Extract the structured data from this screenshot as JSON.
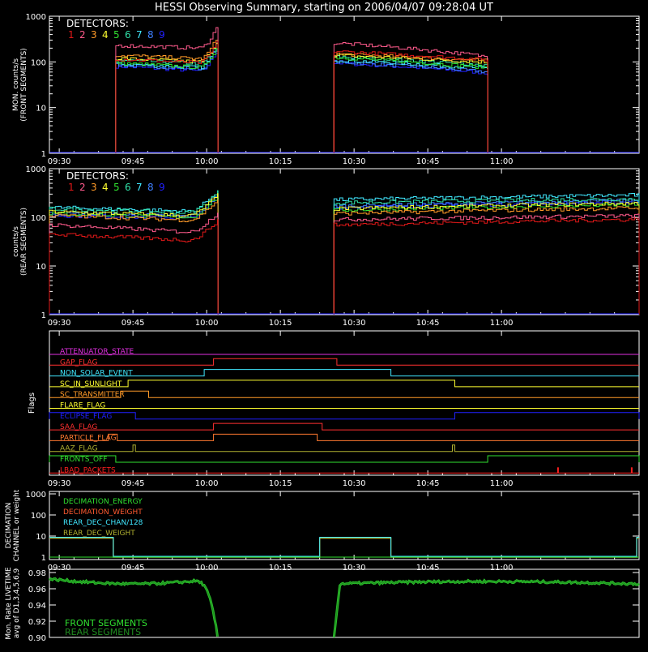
{
  "title": "HESSI Observing Summary, starting on 2006/04/07 09:28:04 UT",
  "colors": {
    "det": [
      "#e01818",
      "#ff5a8c",
      "#ff9a28",
      "#ffff30",
      "#30e030",
      "#30e0a8",
      "#40e8ff",
      "#4080ff",
      "#2020ff"
    ],
    "axis": "#ffffff"
  },
  "chart_data": [
    {
      "type": "line",
      "id": "front",
      "ylabel": [
        "MON. counts/s",
        "(FRONT SEGMENTS)"
      ],
      "yscale": "log",
      "ylim": [
        1,
        1000
      ],
      "yticks": [
        "1",
        "10",
        "100",
        "1000"
      ],
      "xlim_min": [
        0,
        120
      ],
      "xticks_min": [
        2,
        17,
        32,
        47,
        62,
        77,
        92
      ],
      "xtick_labels": [
        "09:30",
        "09:45",
        "10:00",
        "10:15",
        "10:30",
        "10:45",
        "11:00"
      ],
      "legend_title": "DETECTORS:",
      "legend_labels": [
        "1",
        "2",
        "3",
        "4",
        "5",
        "6",
        "7",
        "8",
        "9"
      ],
      "series_labels": [
        "1",
        "2",
        "3",
        "4",
        "5",
        "6",
        "7",
        "8",
        "9"
      ],
      "intervals": [
        {
          "start": 13.5,
          "end": 34.3,
          "base": [
            115,
            230,
            140,
            120,
            95,
            110,
            90,
            85,
            80
          ],
          "end_factor": [
            0.8,
            0.85,
            0.8,
            0.8,
            0.75,
            0.8,
            0.8,
            0.8,
            0.75
          ],
          "spike": 3.2
        },
        {
          "start": 57.9,
          "end": 89.2,
          "base": [
            170,
            260,
            150,
            140,
            125,
            130,
            110,
            100,
            95
          ],
          "end_factor": [
            0.65,
            0.5,
            0.7,
            0.7,
            0.6,
            0.65,
            0.65,
            0.6,
            0.6
          ],
          "spike": 1.0
        }
      ]
    },
    {
      "type": "line",
      "id": "rear",
      "ylabel": [
        "counts/s",
        "(REAR SEGMENTS)"
      ],
      "yscale": "log",
      "ylim": [
        1,
        1000
      ],
      "yticks": [
        "1",
        "10",
        "100",
        "1000"
      ],
      "xlim_min": [
        0,
        120
      ],
      "xticks_min": [
        2,
        17,
        32,
        47,
        62,
        77,
        92
      ],
      "xtick_labels": [
        "09:30",
        "09:45",
        "10:00",
        "10:15",
        "10:30",
        "10:45",
        "11:00"
      ],
      "legend_title": "DETECTORS:",
      "legend_labels": [
        "1",
        "2",
        "3",
        "4",
        "5",
        "6",
        "7",
        "8",
        "9"
      ],
      "series_labels": [
        "1",
        "2",
        "3",
        "4",
        "5",
        "6",
        "7",
        "8",
        "9"
      ],
      "intervals": [
        {
          "start": 0,
          "end": 34.3,
          "base": [
            45,
            70,
            110,
            130,
            120,
            150,
            160,
            120,
            110
          ],
          "end_factor": [
            0.7,
            0.65,
            0.75,
            0.8,
            0.8,
            0.8,
            0.8,
            0.85,
            0.85
          ],
          "spike": 2.8
        },
        {
          "start": 57.9,
          "end": 120,
          "base": [
            70,
            90,
            120,
            150,
            140,
            200,
            230,
            170,
            160
          ],
          "end_factor": [
            1.3,
            1.2,
            1.3,
            1.3,
            1.3,
            1.2,
            1.25,
            1.3,
            1.3
          ],
          "spike": 1.0
        }
      ]
    }
  ],
  "flags": {
    "ylabel": "Flags",
    "xtick_labels": [
      "09:30",
      "09:45",
      "10:00",
      "10:15",
      "10:30",
      "10:45",
      "11:00"
    ],
    "rows": [
      {
        "name": "ATTENUATOR_STATE",
        "color": "#e030e0",
        "steps": []
      },
      {
        "name": "GAP_FLAG",
        "color": "#ff3030",
        "steps": [
          [
            33.4,
            58.5
          ]
        ]
      },
      {
        "name": "NON_SOLAR_EVENT",
        "color": "#40e8ff",
        "steps": [
          [
            31.5,
            69.5
          ]
        ]
      },
      {
        "name": "SC_IN_SUNLIGHT",
        "color": "#ffff30",
        "steps": [
          [
            16.0,
            82.5
          ]
        ]
      },
      {
        "name": "SC_TRANSMITTER",
        "color": "#ff9a28",
        "steps": [
          [
            14.5,
            20.2
          ]
        ]
      },
      {
        "name": "FLARE_FLAG",
        "color": "#ffff30",
        "steps": []
      },
      {
        "name": "ECLIPSE_FLAG",
        "color": "#2020ff",
        "steps": [
          [
            0,
            17.5
          ],
          [
            82.5,
            120
          ]
        ]
      },
      {
        "name": "SAA_FLAG",
        "color": "#ff3030",
        "steps": [
          [
            33.4,
            55.5
          ]
        ]
      },
      {
        "name": "PARTICLE_FLAG",
        "color": "#ff7a30",
        "steps": [
          [
            12.0,
            13.8
          ],
          [
            33.4,
            54.5
          ]
        ]
      },
      {
        "name": "AAZ_FLAG",
        "color": "#b0b030",
        "steps": [
          [
            17.0,
            17.5
          ],
          [
            82.0,
            82.5
          ]
        ]
      },
      {
        "name": "FRONTS_OFF",
        "color": "#30e030",
        "steps": [
          [
            0,
            13.5
          ],
          [
            89.2,
            120
          ]
        ]
      },
      {
        "name": "LBAD_PACKETS",
        "color": "#ff2020",
        "steps": [],
        "ticks": [
          103.5,
          118.5
        ]
      }
    ]
  },
  "decimation": {
    "ylabel": [
      "DECIMATION",
      "CHANNEL or weight"
    ],
    "yticks": [
      "1",
      "10",
      "100",
      "1000"
    ],
    "xtick_labels": [
      "09:30",
      "09:45",
      "10:00",
      "10:15",
      "10:30",
      "10:45",
      "11:00"
    ],
    "legend": [
      {
        "label": "DECIMATION_ENERGY",
        "color": "#30e030"
      },
      {
        "label": "DECIMATION_WEIGHT",
        "color": "#ff5a30"
      },
      {
        "label": "REAR_DEC_CHAN/128",
        "color": "#40e8ff"
      },
      {
        "label": "REAR_DEC_WEIGHT",
        "color": "#b0b030"
      }
    ],
    "segments": [
      [
        0,
        13.0,
        8
      ],
      [
        13.0,
        55.0,
        1
      ],
      [
        55.0,
        69.5,
        8
      ],
      [
        69.5,
        119.5,
        1
      ],
      [
        119.5,
        120,
        8
      ]
    ]
  },
  "livetime": {
    "ylabel": [
      "Mon. Rate LIVETIME",
      "avg of D1,3,4,5,6,9"
    ],
    "ylim": [
      0.9,
      0.98
    ],
    "yticks": [
      "0.90",
      "0.92",
      "0.94",
      "0.96",
      "0.98"
    ],
    "legend": [
      {
        "label": "FRONT SEGMENTS",
        "color": "#30e030"
      },
      {
        "label": "REAR SEGMENTS",
        "color": "#208c20"
      }
    ],
    "intervals": [
      [
        0,
        34.3,
        0.972
      ],
      [
        57.9,
        120,
        0.966
      ]
    ]
  }
}
